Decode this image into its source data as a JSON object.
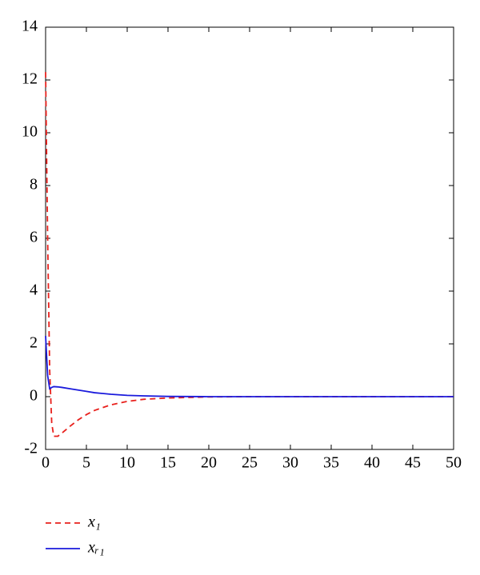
{
  "chart_data": {
    "type": "line",
    "x": [
      0,
      0.25,
      0.5,
      0.75,
      1,
      1.5,
      2,
      3,
      4,
      5,
      6,
      8,
      10,
      12,
      15,
      20,
      25,
      30,
      40,
      50
    ],
    "series": [
      {
        "name": "x₁",
        "color": "#e8201c",
        "dash": true,
        "values": [
          12.3,
          6,
          1,
          -1.0,
          -1.5,
          -1.5,
          -1.38,
          -1.12,
          -0.88,
          -0.68,
          -0.52,
          -0.31,
          -0.18,
          -0.1,
          -0.05,
          -0.01,
          0,
          0,
          0,
          0
        ]
      },
      {
        "name": "xᵣ₁",
        "color": "#1a1adc",
        "dash": false,
        "values": [
          2.3,
          0.8,
          0.3,
          0.35,
          0.38,
          0.37,
          0.35,
          0.3,
          0.25,
          0.2,
          0.15,
          0.09,
          0.05,
          0.03,
          0.01,
          0,
          0,
          0,
          0,
          0
        ]
      }
    ],
    "xlim": [
      0,
      50
    ],
    "xticks": [
      0,
      5,
      10,
      15,
      20,
      25,
      30,
      35,
      40,
      45,
      50
    ],
    "ylim": [
      -2,
      14
    ],
    "yticks": [
      -2,
      0,
      2,
      4,
      6,
      8,
      10,
      12,
      14
    ],
    "grid": false
  }
}
